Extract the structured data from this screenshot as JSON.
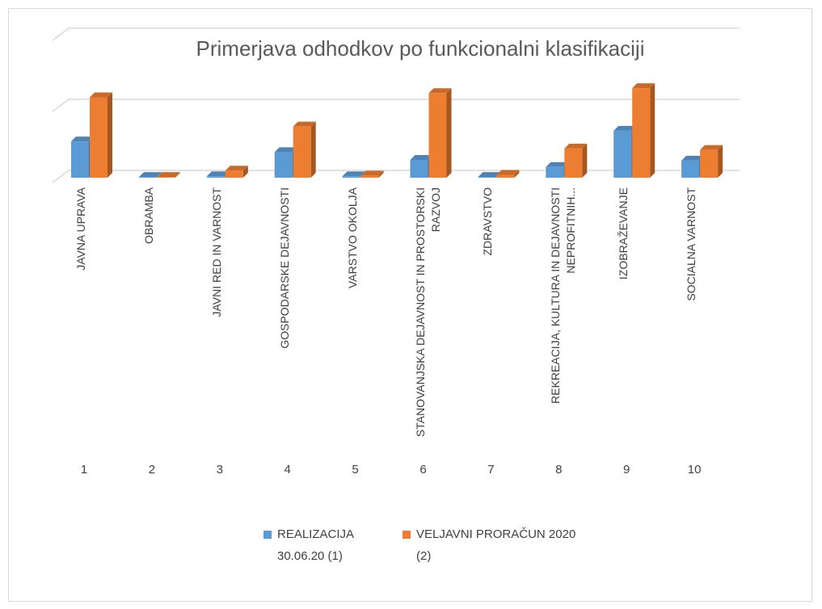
{
  "chart_data": {
    "type": "bar3d",
    "title": "Primerjava odhodkov po funkcionalni klasifikaciji",
    "categories": [
      "JAVNA UPRAVA",
      "OBRAMBA",
      "JAVNI RED IN VARNOST",
      "GOSPODARSKE DEJAVNOSTI",
      "VARSTVO OKOLJA",
      "STANOVANJSKA DEJAVNOST IN PROSTORSKI RAZVOJ",
      "ZDRAVSTVO",
      "REKREACIJA, KULTURA IN DEJAVNOSTI NEPROFITNIH...",
      "IZOBRAŽEVANJE",
      "SOCIALNA VARNOST"
    ],
    "category_numbers": [
      1,
      2,
      3,
      4,
      5,
      6,
      7,
      8,
      9,
      10
    ],
    "series": [
      {
        "name": "REALIZACIJA 30.06.20 (1)",
        "color": "#5b9bd5",
        "values": [
          0.51,
          0.01,
          0.02,
          0.36,
          0.02,
          0.25,
          0.01,
          0.15,
          0.66,
          0.24
        ]
      },
      {
        "name": "VELJAVNI PRORAČUN 2020 (2)",
        "color": "#ed7d31",
        "values": [
          1.13,
          0.01,
          0.1,
          0.72,
          0.03,
          1.19,
          0.04,
          0.41,
          1.26,
          0.39
        ]
      }
    ],
    "ylim": [
      0,
      2
    ],
    "yticks": [
      0,
      1,
      2
    ],
    "show_ytick_labels": false,
    "grid": true,
    "legend": "bottom"
  }
}
